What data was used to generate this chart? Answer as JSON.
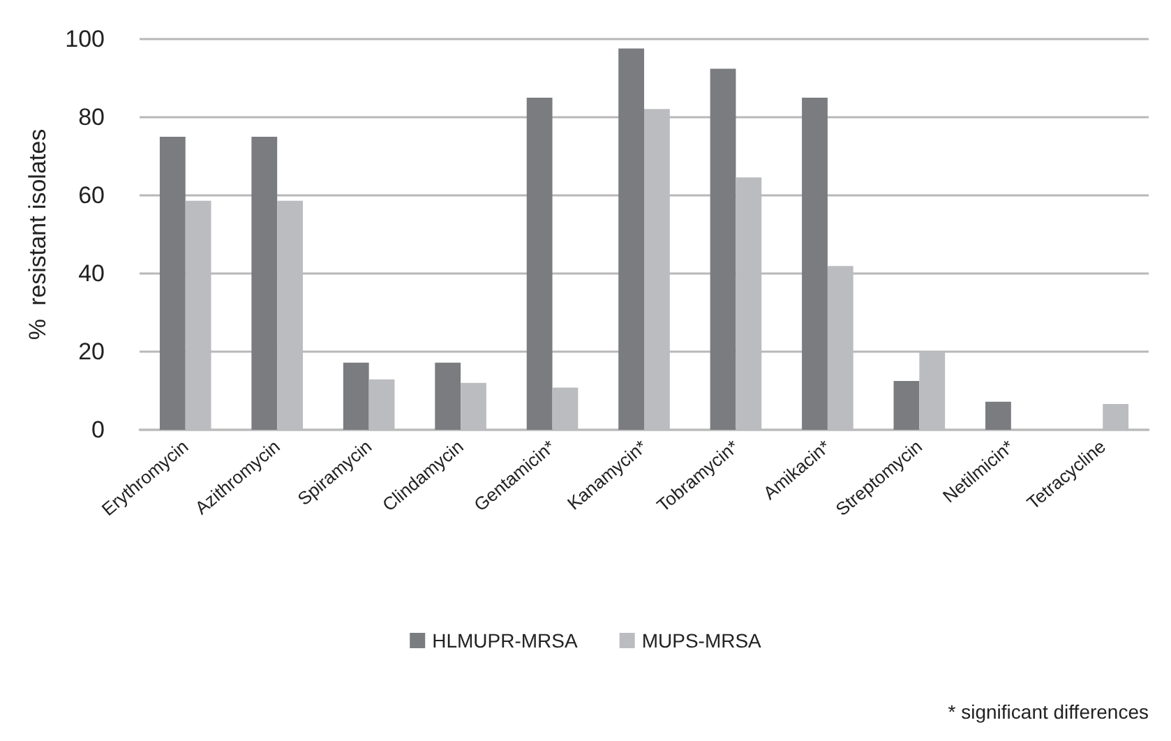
{
  "chart_data": {
    "type": "bar",
    "ylabel": "%  resistant isolates",
    "categories": [
      "Erythromycin",
      "Azithromycin",
      "Spiramycin",
      "Clindamycin",
      "Gentamicin*",
      "Kanamycin*",
      "Tobramycin*",
      "Amikacin*",
      "Streptomycin",
      "Netilmicin*",
      "Tetracycline"
    ],
    "series": [
      {
        "name": "HLMUPR-MRSA",
        "color": "#7b7c80",
        "values": [
          75,
          75,
          17.2,
          17.2,
          85,
          97.6,
          92.4,
          85,
          12.5,
          7.2,
          0
        ]
      },
      {
        "name": "MUPS-MRSA",
        "color": "#bbbcc0",
        "values": [
          58.6,
          58.6,
          12.9,
          12,
          10.8,
          82.1,
          64.6,
          41.9,
          19.9,
          0,
          6.6
        ]
      }
    ],
    "ylim": [
      0,
      100
    ],
    "yticks": [
      0,
      20,
      40,
      60,
      80,
      100
    ],
    "grid": "y",
    "legend": "bottom",
    "annotations": [
      "* significant differences"
    ]
  }
}
